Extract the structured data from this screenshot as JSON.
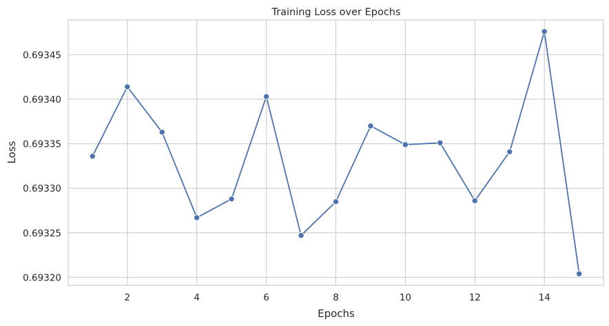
{
  "chart_data": {
    "type": "line",
    "title": "Training Loss over Epochs",
    "xlabel": "Epochs",
    "ylabel": "Loss",
    "x": [
      1,
      2,
      3,
      4,
      5,
      6,
      7,
      8,
      9,
      10,
      11,
      12,
      13,
      14,
      15
    ],
    "series": [
      {
        "values": [
          0.693336,
          0.693414,
          0.693363,
          0.693267,
          0.693288,
          0.693403,
          0.693247,
          0.693285,
          0.69337,
          0.693349,
          0.693351,
          0.693286,
          0.693341,
          0.693476,
          0.693204
        ],
        "color": "#4c72b0",
        "marker": "circle"
      }
    ],
    "xlim": [
      0.3,
      15.7
    ],
    "ylim": [
      0.693191,
      0.693489
    ],
    "xticks": [
      2,
      4,
      6,
      8,
      10,
      12,
      14
    ],
    "xtick_labels": [
      "2",
      "4",
      "6",
      "8",
      "10",
      "12",
      "14"
    ],
    "yticks": [
      0.6932,
      0.69325,
      0.6933,
      0.69335,
      0.6934,
      0.69345
    ],
    "ytick_labels": [
      "0.69320",
      "0.69325",
      "0.69330",
      "0.69335",
      "0.69340",
      "0.69345"
    ],
    "grid": true
  }
}
